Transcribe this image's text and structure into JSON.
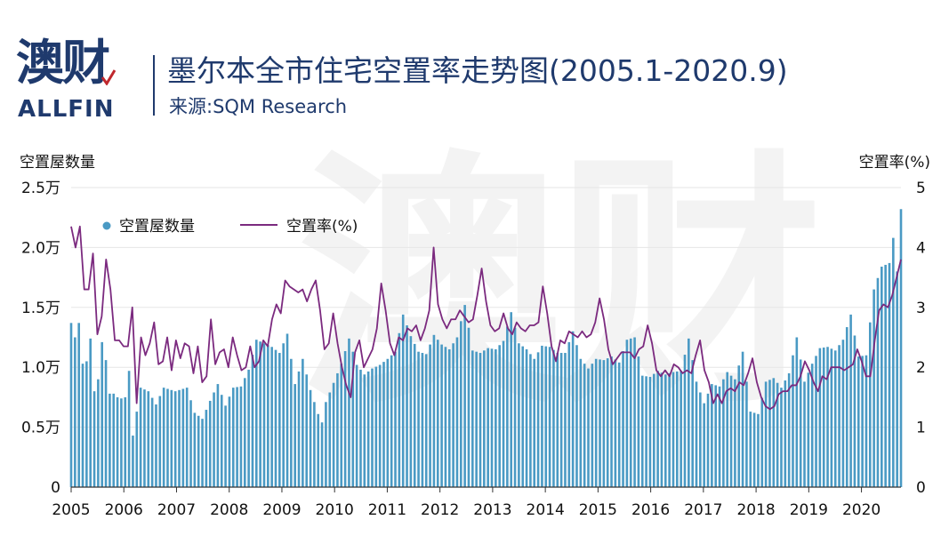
{
  "logo": {
    "cn": "澳财",
    "en": "ALLFIN"
  },
  "header": {
    "title": "墨尔本全市住宅空置率走势图(2005.1-2020.9)",
    "source": "来源:SQM Research"
  },
  "watermark": "澳财",
  "colors": {
    "bar": "#4a9ac4",
    "line": "#7b2a7f",
    "title": "#1f3a6d",
    "grid": "#e6e6e6"
  },
  "chart_data": {
    "type": "bar+line",
    "left_axis": {
      "title": "空置屋数量",
      "range": [
        0,
        25000
      ],
      "ticks": [
        0,
        5000,
        10000,
        15000,
        20000,
        25000
      ],
      "tick_labels": [
        "0",
        "0.5万",
        "1.0万",
        "1.5万",
        "2.0万",
        "2.5万"
      ]
    },
    "right_axis": {
      "title": "空置率(%)",
      "range": [
        0,
        5
      ],
      "ticks": [
        0,
        1,
        2,
        3,
        4,
        5
      ],
      "tick_labels": [
        "0",
        "1",
        "2",
        "3",
        "4",
        "5"
      ]
    },
    "x_axis": {
      "start": "2005-01",
      "end": "2020-09",
      "tick_labels": [
        "2005",
        "2006",
        "2007",
        "2008",
        "2009",
        "2010",
        "2011",
        "2012",
        "2013",
        "2014",
        "2015",
        "2016",
        "2017",
        "2018",
        "2019",
        "2020"
      ]
    },
    "legend": {
      "placement": "top-left",
      "items": [
        {
          "label": "空置屋数量",
          "type": "dot"
        },
        {
          "label": "空置率(%)",
          "type": "line"
        }
      ]
    },
    "grid": true,
    "anchors": {
      "vacant_dwellings": [
        [
          0,
          13700
        ],
        [
          1,
          12500
        ],
        [
          2,
          13700
        ],
        [
          3,
          10300
        ],
        [
          4,
          10500
        ],
        [
          5,
          12400
        ],
        [
          6,
          8000
        ],
        [
          7,
          9000
        ],
        [
          8,
          12100
        ],
        [
          9,
          10600
        ],
        [
          10,
          7800
        ],
        [
          11,
          7800
        ],
        [
          12,
          7500
        ],
        [
          13,
          7400
        ],
        [
          14,
          7500
        ],
        [
          15,
          9700
        ],
        [
          16,
          4300
        ],
        [
          18,
          8300
        ],
        [
          20,
          8000
        ],
        [
          22,
          6900
        ],
        [
          24,
          8300
        ],
        [
          27,
          8000
        ],
        [
          30,
          8300
        ],
        [
          32,
          6200
        ],
        [
          34,
          5700
        ],
        [
          36,
          7200
        ],
        [
          38,
          8600
        ],
        [
          40,
          6800
        ],
        [
          42,
          8300
        ],
        [
          44,
          8400
        ],
        [
          46,
          9800
        ],
        [
          48,
          12300
        ],
        [
          50,
          12000
        ],
        [
          52,
          11700
        ],
        [
          54,
          11200
        ],
        [
          56,
          12800
        ],
        [
          58,
          8600
        ],
        [
          60,
          10700
        ],
        [
          62,
          8100
        ],
        [
          64,
          6100
        ],
        [
          65,
          5400
        ],
        [
          66,
          7100
        ],
        [
          68,
          8700
        ],
        [
          70,
          10300
        ],
        [
          72,
          12400
        ],
        [
          74,
          10200
        ],
        [
          76,
          9400
        ],
        [
          78,
          9900
        ],
        [
          80,
          10200
        ],
        [
          82,
          10700
        ],
        [
          84,
          11300
        ],
        [
          86,
          14400
        ],
        [
          88,
          12600
        ],
        [
          90,
          11300
        ],
        [
          92,
          11100
        ],
        [
          94,
          12700
        ],
        [
          96,
          11900
        ],
        [
          98,
          11500
        ],
        [
          100,
          12500
        ],
        [
          102,
          15200
        ],
        [
          104,
          11400
        ],
        [
          106,
          11200
        ],
        [
          108,
          11600
        ],
        [
          110,
          11500
        ],
        [
          112,
          12200
        ],
        [
          114,
          14600
        ],
        [
          116,
          12000
        ],
        [
          118,
          11500
        ],
        [
          120,
          10700
        ],
        [
          122,
          11800
        ],
        [
          124,
          11700
        ],
        [
          126,
          11200
        ],
        [
          128,
          11200
        ],
        [
          130,
          13000
        ],
        [
          132,
          10700
        ],
        [
          134,
          9900
        ],
        [
          136,
          10700
        ],
        [
          138,
          10600
        ],
        [
          140,
          10900
        ],
        [
          142,
          10400
        ],
        [
          144,
          12300
        ],
        [
          146,
          12500
        ],
        [
          148,
          9300
        ],
        [
          150,
          9200
        ],
        [
          152,
          9700
        ],
        [
          154,
          9400
        ],
        [
          156,
          9600
        ],
        [
          158,
          9700
        ],
        [
          160,
          12400
        ],
        [
          162,
          8800
        ],
        [
          164,
          7000
        ],
        [
          166,
          8600
        ],
        [
          168,
          8400
        ],
        [
          170,
          9600
        ],
        [
          172,
          9000
        ],
        [
          174,
          11300
        ],
        [
          176,
          6300
        ],
        [
          178,
          6100
        ],
        [
          180,
          8800
        ],
        [
          182,
          9100
        ],
        [
          184,
          8300
        ],
        [
          186,
          9500
        ],
        [
          188,
          12500
        ],
        [
          190,
          8800
        ],
        [
          192,
          10300
        ],
        [
          194,
          11600
        ],
        [
          196,
          11700
        ],
        [
          198,
          11400
        ],
        [
          200,
          12300
        ],
        [
          202,
          14400
        ],
        [
          204,
          10900
        ],
        [
          206,
          11000
        ],
        [
          208,
          16500
        ],
        [
          210,
          18400
        ],
        [
          212,
          18700
        ],
        [
          213,
          20800
        ],
        [
          214,
          18000
        ],
        [
          215,
          23200
        ]
      ],
      "vacancy_rate_pct": [
        [
          0,
          4.35
        ],
        [
          1,
          4.0
        ],
        [
          2,
          4.35
        ],
        [
          3,
          3.3
        ],
        [
          4,
          3.3
        ],
        [
          5,
          3.9
        ],
        [
          6,
          2.55
        ],
        [
          7,
          2.85
        ],
        [
          8,
          3.8
        ],
        [
          9,
          3.3
        ],
        [
          10,
          2.45
        ],
        [
          11,
          2.45
        ],
        [
          12,
          2.35
        ],
        [
          13,
          2.35
        ],
        [
          14,
          3.0
        ],
        [
          15,
          1.4
        ],
        [
          16,
          2.5
        ],
        [
          17,
          2.2
        ],
        [
          18,
          2.4
        ],
        [
          19,
          2.75
        ],
        [
          20,
          2.05
        ],
        [
          21,
          2.1
        ],
        [
          22,
          2.5
        ],
        [
          23,
          1.95
        ],
        [
          24,
          2.45
        ],
        [
          25,
          2.15
        ],
        [
          26,
          2.4
        ],
        [
          27,
          2.35
        ],
        [
          28,
          1.9
        ],
        [
          29,
          2.35
        ],
        [
          30,
          1.75
        ],
        [
          31,
          1.85
        ],
        [
          32,
          2.8
        ],
        [
          33,
          2.05
        ],
        [
          34,
          2.25
        ],
        [
          35,
          2.3
        ],
        [
          36,
          2.0
        ],
        [
          37,
          2.5
        ],
        [
          38,
          2.2
        ],
        [
          39,
          1.95
        ],
        [
          40,
          2.0
        ],
        [
          41,
          2.35
        ],
        [
          42,
          2.0
        ],
        [
          43,
          2.1
        ],
        [
          44,
          2.45
        ],
        [
          45,
          2.35
        ],
        [
          46,
          2.8
        ],
        [
          47,
          3.05
        ],
        [
          48,
          2.9
        ],
        [
          49,
          3.45
        ],
        [
          50,
          3.35
        ],
        [
          51,
          3.3
        ],
        [
          52,
          3.25
        ],
        [
          53,
          3.3
        ],
        [
          54,
          3.1
        ],
        [
          55,
          3.3
        ],
        [
          56,
          3.45
        ],
        [
          57,
          2.95
        ],
        [
          58,
          2.3
        ],
        [
          59,
          2.4
        ],
        [
          60,
          2.9
        ],
        [
          61,
          2.4
        ],
        [
          62,
          2.0
        ],
        [
          63,
          1.7
        ],
        [
          64,
          1.5
        ],
        [
          65,
          2.25
        ],
        [
          66,
          2.45
        ],
        [
          67,
          2.0
        ],
        [
          68,
          2.15
        ],
        [
          69,
          2.3
        ],
        [
          70,
          2.65
        ],
        [
          71,
          3.4
        ],
        [
          72,
          2.95
        ],
        [
          73,
          2.4
        ],
        [
          74,
          2.2
        ],
        [
          75,
          2.5
        ],
        [
          76,
          2.45
        ],
        [
          77,
          2.65
        ],
        [
          78,
          2.6
        ],
        [
          79,
          2.7
        ],
        [
          80,
          2.45
        ],
        [
          81,
          2.65
        ],
        [
          82,
          2.95
        ],
        [
          83,
          4.0
        ],
        [
          84,
          3.05
        ],
        [
          85,
          2.8
        ],
        [
          86,
          2.65
        ],
        [
          87,
          2.8
        ],
        [
          88,
          2.8
        ],
        [
          89,
          2.95
        ],
        [
          90,
          2.85
        ],
        [
          91,
          2.75
        ],
        [
          92,
          2.8
        ],
        [
          93,
          3.2
        ],
        [
          94,
          3.65
        ],
        [
          95,
          3.1
        ],
        [
          96,
          2.7
        ],
        [
          97,
          2.6
        ],
        [
          98,
          2.65
        ],
        [
          99,
          2.9
        ],
        [
          100,
          2.65
        ],
        [
          101,
          2.55
        ],
        [
          102,
          2.75
        ],
        [
          103,
          2.65
        ],
        [
          104,
          2.6
        ],
        [
          105,
          2.7
        ],
        [
          106,
          2.7
        ],
        [
          107,
          2.75
        ],
        [
          108,
          3.35
        ],
        [
          109,
          2.9
        ],
        [
          110,
          2.35
        ],
        [
          111,
          2.1
        ],
        [
          112,
          2.45
        ],
        [
          113,
          2.4
        ],
        [
          114,
          2.6
        ],
        [
          115,
          2.55
        ],
        [
          116,
          2.5
        ],
        [
          117,
          2.6
        ],
        [
          118,
          2.5
        ],
        [
          119,
          2.55
        ],
        [
          120,
          2.75
        ],
        [
          121,
          3.15
        ],
        [
          122,
          2.8
        ],
        [
          123,
          2.3
        ],
        [
          124,
          2.05
        ],
        [
          125,
          2.15
        ],
        [
          126,
          2.25
        ],
        [
          127,
          2.25
        ],
        [
          128,
          2.25
        ],
        [
          129,
          2.15
        ],
        [
          130,
          2.3
        ],
        [
          131,
          2.35
        ],
        [
          132,
          2.7
        ],
        [
          133,
          2.4
        ],
        [
          134,
          1.95
        ],
        [
          135,
          1.85
        ],
        [
          136,
          1.95
        ],
        [
          137,
          1.85
        ],
        [
          138,
          2.05
        ],
        [
          139,
          2.0
        ],
        [
          140,
          1.9
        ],
        [
          141,
          1.95
        ],
        [
          142,
          1.9
        ],
        [
          143,
          2.2
        ],
        [
          144,
          2.45
        ],
        [
          145,
          1.95
        ],
        [
          146,
          1.75
        ],
        [
          147,
          1.4
        ],
        [
          148,
          1.55
        ],
        [
          149,
          1.4
        ],
        [
          150,
          1.6
        ],
        [
          151,
          1.65
        ],
        [
          152,
          1.6
        ],
        [
          153,
          1.75
        ],
        [
          154,
          1.7
        ],
        [
          155,
          1.9
        ],
        [
          156,
          2.15
        ],
        [
          157,
          1.75
        ],
        [
          158,
          1.5
        ],
        [
          159,
          1.35
        ],
        [
          160,
          1.3
        ],
        [
          161,
          1.35
        ],
        [
          162,
          1.55
        ],
        [
          163,
          1.6
        ],
        [
          164,
          1.6
        ],
        [
          165,
          1.7
        ],
        [
          166,
          1.7
        ],
        [
          167,
          1.85
        ],
        [
          168,
          2.1
        ],
        [
          169,
          1.95
        ],
        [
          170,
          1.75
        ],
        [
          171,
          1.6
        ],
        [
          172,
          1.85
        ],
        [
          173,
          1.8
        ],
        [
          174,
          2.0
        ],
        [
          175,
          2.0
        ],
        [
          176,
          2.0
        ],
        [
          177,
          1.95
        ],
        [
          178,
          2.0
        ],
        [
          179,
          2.05
        ],
        [
          180,
          2.3
        ],
        [
          181,
          2.1
        ],
        [
          182,
          1.85
        ],
        [
          183,
          1.85
        ],
        [
          184,
          2.45
        ],
        [
          185,
          2.95
        ],
        [
          186,
          3.05
        ],
        [
          187,
          3.0
        ],
        [
          188,
          3.2
        ],
        [
          189,
          3.5
        ],
        [
          190,
          3.8
        ]
      ]
    }
  }
}
